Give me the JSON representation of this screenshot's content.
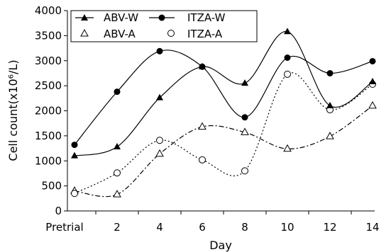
{
  "chart_data": {
    "type": "line",
    "xlabel": "Day",
    "ylabel": "Cell count(x10⁶/L)",
    "ylim": [
      0,
      4000
    ],
    "yticks": [
      "0",
      "500",
      "1000",
      "1500",
      "2000",
      "2500",
      "3000",
      "3500",
      "4000"
    ],
    "categories": [
      "Pretrial",
      "2",
      "4",
      "6",
      "8",
      "10",
      "12",
      "14"
    ],
    "grid": false,
    "legend_position": "top-left",
    "series": [
      {
        "name": "ABV-W",
        "marker": "filled-triangle",
        "line": "solid",
        "values": [
          1100,
          1280,
          2260,
          2880,
          2550,
          3580,
          2100,
          2580
        ]
      },
      {
        "name": "ITZA-W",
        "marker": "filled-circle",
        "line": "solid",
        "values": [
          1320,
          2380,
          3190,
          2880,
          1870,
          3060,
          2750,
          2990
        ]
      },
      {
        "name": "ABV-A",
        "marker": "open-triangle",
        "line": "dash-dot",
        "values": [
          400,
          330,
          1140,
          1680,
          1570,
          1240,
          1490,
          2100
        ]
      },
      {
        "name": "ITZA-A",
        "marker": "open-circle",
        "line": "dotted",
        "values": [
          350,
          760,
          1410,
          1020,
          800,
          2730,
          2020,
          2530
        ]
      }
    ]
  }
}
